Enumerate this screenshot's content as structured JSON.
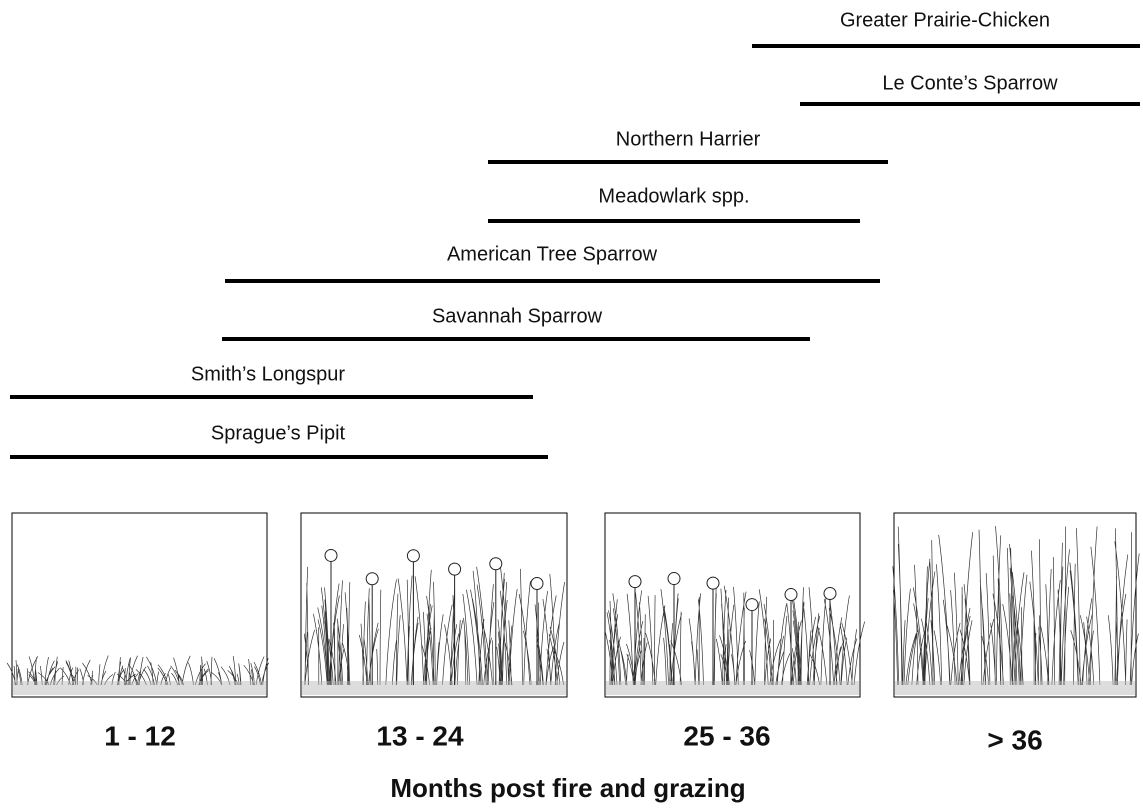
{
  "species": [
    {
      "label": "Greater Prairie-Chicken"
    },
    {
      "label": "Le Conte’s Sparrow"
    },
    {
      "label": "Northern Harrier"
    },
    {
      "label": "Meadowlark spp."
    },
    {
      "label": "American Tree Sparrow"
    },
    {
      "label": "Savannah Sparrow"
    },
    {
      "label": "Smith’s Longspur"
    },
    {
      "label": "Sprague’s Pipit"
    }
  ],
  "panels": [
    {
      "label": "1 - 12"
    },
    {
      "label": "13 - 24"
    },
    {
      "label": "25 - 36"
    },
    {
      "label": "> 36"
    }
  ],
  "axis_title": "Months post fire and grazing"
}
